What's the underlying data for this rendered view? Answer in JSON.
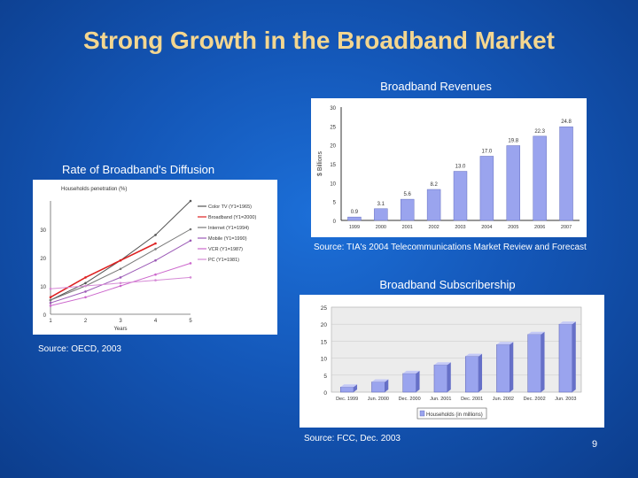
{
  "slide": {
    "title": "Strong Growth in the Broadband Market",
    "page_number": "9"
  },
  "revenues": {
    "label": "Broadband Revenues",
    "source": "Source:  TIA's 2004 Telecommunications Market Review and Forecast"
  },
  "diffusion": {
    "label": "Rate of Broadband's Diffusion",
    "source": "Source:  OECD, 2003"
  },
  "subscribers": {
    "label": "Broadband Subscribership",
    "source": "Source:  FCC, Dec. 2003"
  },
  "chart_data": [
    {
      "type": "bar",
      "ylabel": "$ Billions",
      "ylim": [
        0,
        30
      ],
      "yticks": [
        "0",
        "5",
        "10",
        "15",
        "20",
        "25",
        "30"
      ],
      "categories": [
        "1999",
        "2000",
        "2001",
        "2002",
        "2003",
        "2004",
        "2005",
        "2006",
        "2007"
      ],
      "values": [
        0.9,
        3.1,
        5.6,
        8.2,
        13.0,
        17.0,
        19.8,
        22.3,
        24.8
      ],
      "data_labels": [
        "0.9",
        "3.1",
        "5.6",
        "8.2",
        "13.0",
        "17.0",
        "19.8",
        "22.3",
        "24.8"
      ],
      "color": "#9aa4ee"
    },
    {
      "type": "line",
      "xlabel": "Years",
      "ylabel": "Households penetration (%)",
      "ylim": [
        0,
        40
      ],
      "yticks": [
        "0",
        "10",
        "20",
        "30"
      ],
      "x": [
        1,
        2,
        3,
        4,
        5
      ],
      "series": [
        {
          "name": "Color TV (Y1=1965)",
          "values": [
            5,
            11,
            19,
            28,
            40
          ],
          "color": "#555555"
        },
        {
          "name": "Broadband (Y1=2000)",
          "values": [
            6,
            13,
            19,
            25,
            null
          ],
          "color": "#dd2222"
        },
        {
          "name": "Internet (Y1=1994)",
          "values": [
            5,
            10,
            16,
            23,
            30
          ],
          "color": "#777777"
        },
        {
          "name": "Mobile (Y1=1990)",
          "values": [
            4,
            8,
            13,
            19,
            26
          ],
          "color": "#9b59b6"
        },
        {
          "name": "VCR (Y1=1987)",
          "values": [
            3,
            6,
            10,
            14,
            18
          ],
          "color": "#cc66cc"
        },
        {
          "name": "PC (Y1=1981)",
          "values": [
            9,
            10,
            11,
            12,
            13
          ],
          "color": "#d68ad6"
        }
      ],
      "legend": "right"
    },
    {
      "type": "bar",
      "xlabel": "Households (in millions)",
      "ylim": [
        0,
        25
      ],
      "yticks": [
        "0",
        "5",
        "10",
        "15",
        "20",
        "25"
      ],
      "categories": [
        "Dec. 1999",
        "Jun. 2000",
        "Dec. 2000",
        "Jun. 2001",
        "Dec. 2001",
        "Jun. 2002",
        "Dec. 2002",
        "Jun. 2003"
      ],
      "values": [
        1.5,
        3.0,
        5.5,
        8.0,
        10.5,
        14.0,
        17.0,
        20.0
      ],
      "color": "#9aa4ee"
    }
  ]
}
